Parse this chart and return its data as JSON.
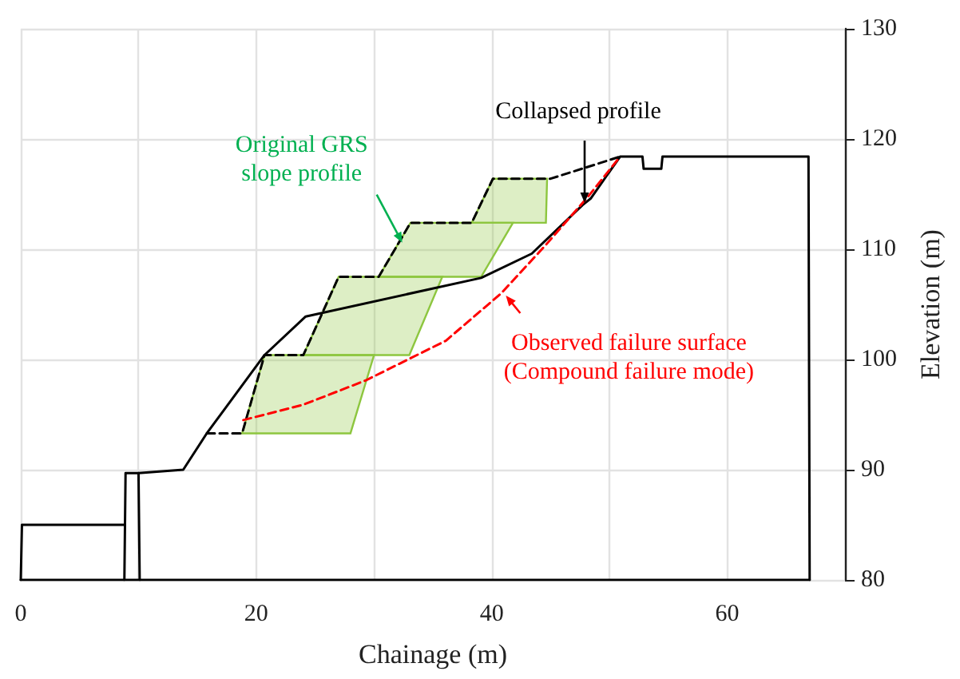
{
  "chart_data": {
    "type": "line",
    "xlabel": "Chainage (m)",
    "ylabel": "Elevation (m)",
    "xlim": [
      0,
      70
    ],
    "xticks": [
      0,
      20,
      40,
      60
    ],
    "ylim": [
      80,
      130
    ],
    "yticks": [
      80,
      90,
      100,
      110,
      120,
      130
    ],
    "grid": true,
    "marker": "none",
    "series": [
      {
        "type": "area",
        "color": "#8dc63f",
        "x": [
          18.8,
          28.0,
          30.0,
          20.7
        ],
        "values": [
          93.3,
          93.3,
          100.4,
          100.4
        ]
      },
      {
        "type": "area",
        "color": "#8dc63f",
        "x": [
          24.0,
          33.0,
          35.8,
          27.0
        ],
        "values": [
          100.4,
          100.4,
          107.5,
          107.5
        ]
      },
      {
        "type": "area",
        "color": "#8dc63f",
        "x": [
          30.4,
          39.1,
          41.8,
          33.1
        ],
        "values": [
          107.5,
          107.5,
          112.4,
          112.4
        ]
      },
      {
        "type": "area",
        "color": "#8dc63f",
        "x": [
          38.3,
          44.6,
          44.7,
          40.1
        ],
        "values": [
          112.4,
          112.4,
          116.4,
          116.4
        ]
      },
      {
        "color": "#000000",
        "line_style": "solid",
        "x": [
          10,
          13.8,
          15.8,
          20.7,
          24.2,
          39.1,
          43.4,
          47.7,
          48.4,
          50.9,
          52.8,
          52.9,
          54.4,
          54.5,
          66.9,
          67.0
        ],
        "values": [
          89.7,
          90,
          93.3,
          100.4,
          103.9,
          107.4,
          109.6,
          114,
          114.6,
          118.4,
          118.4,
          117.3,
          117.3,
          118.4,
          118.4,
          80
        ]
      },
      {
        "color": "#000000",
        "line_style": "solid",
        "x": [
          0,
          0.1,
          8.8
        ],
        "values": [
          80,
          85,
          85
        ]
      },
      {
        "color": "#000000",
        "line_style": "solid",
        "x": [
          8.8,
          8.9,
          10,
          10.1
        ],
        "values": [
          80,
          89.7,
          89.7,
          80
        ]
      },
      {
        "color": "#000000",
        "line_style": "solid",
        "x": [
          0,
          67.0
        ],
        "values": [
          80,
          80
        ]
      },
      {
        "color": "#000000",
        "line_style": "dashed",
        "x": [
          15.8,
          18.8,
          20.7,
          24.0,
          27.0,
          30.4,
          33.1,
          38.3,
          40.1,
          45.0,
          50.9
        ],
        "values": [
          93.3,
          93.3,
          100.4,
          100.4,
          107.5,
          107.5,
          112.4,
          112.4,
          116.4,
          116.4,
          118.4
        ]
      },
      {
        "color": "#ff0000",
        "line_style": "dashed",
        "x": [
          18.9,
          24.0,
          29.3,
          36.1,
          40.8,
          44.6,
          48.2,
          50.9
        ],
        "values": [
          94.5,
          95.9,
          98.1,
          101.7,
          106.0,
          110.4,
          114.8,
          118.4
        ]
      }
    ],
    "annotations": [
      {
        "text": "Original GRS\nslope profile",
        "x": 32.4,
        "y": 110.6
      },
      "Collapsed profile",
      {
        "text": "Observed failure surface\n(Compound failure mode)",
        "x": 41.2,
        "y": 105.8
      }
    ]
  }
}
